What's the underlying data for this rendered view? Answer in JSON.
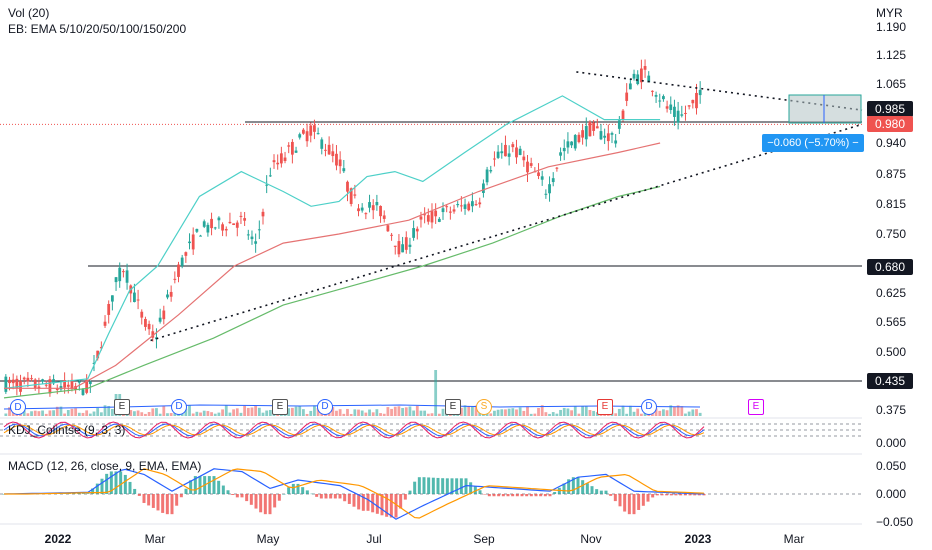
{
  "header": {
    "vol_label": "Vol (20)",
    "ema_label": "EB: EMA 5/10/20/50/100/150/200",
    "currency": "MYR"
  },
  "kdj_label": "KDJ_Colintse (9, 3, 3)",
  "macd_label": "MACD (12, 26, close, 9, EMA, EMA)",
  "badges": {
    "price_0985": "0.985",
    "price_0980": "0.980",
    "price_0680": "0.680",
    "price_0435": "0.435",
    "measure": "−0.060 (−5.70%) −"
  },
  "event_markers": [
    "D",
    "E",
    "D",
    "E",
    "D",
    "E",
    "S",
    "E",
    "D",
    "E"
  ],
  "colors": {
    "up": "#26a69a",
    "down": "#ef5350",
    "ema_fast": "#4dd0c8",
    "ema_mid": "#e57373",
    "ema_slow": "#66bb6a",
    "macd": "#2962ff",
    "signal": "#ff9800",
    "badge_dark": "#131722",
    "badge_red": "#ef5350",
    "badge_blue": "#2196f3"
  },
  "chart_data": {
    "type": "candlestick",
    "symbol_currency": "MYR",
    "x_ticks": [
      "2022",
      "Mar",
      "May",
      "Jul",
      "Sep",
      "Nov",
      "2023",
      "Mar"
    ],
    "main_y_ticks": [
      "1.190",
      "1.125",
      "1.065",
      "0.985",
      "0.940",
      "0.875",
      "0.815",
      "0.750",
      "0.680",
      "0.625",
      "0.565",
      "0.500",
      "0.435",
      "0.375"
    ],
    "kdj_y_ticks": [
      "0.000"
    ],
    "macd_y_ticks": [
      "0.050",
      "0.000",
      "−0.050"
    ],
    "last_price": 0.98,
    "horizontal_levels": [
      0.985,
      0.68,
      0.435
    ],
    "measure_change": "−0.060 (−5.70%)",
    "ema_series": [
      {
        "anchors": [
          [
            0.0,
            0.42
          ],
          [
            0.12,
            0.44
          ],
          [
            0.15,
            0.54
          ],
          [
            0.18,
            0.63
          ],
          [
            0.22,
            0.68
          ],
          [
            0.28,
            0.83
          ],
          [
            0.34,
            0.88
          ],
          [
            0.4,
            0.84
          ],
          [
            0.44,
            0.81
          ],
          [
            0.48,
            0.82
          ],
          [
            0.52,
            0.87
          ],
          [
            0.56,
            0.88
          ],
          [
            0.6,
            0.86
          ],
          [
            0.66,
            0.92
          ],
          [
            0.72,
            0.98
          ],
          [
            0.8,
            1.04
          ],
          [
            0.86,
            0.99
          ],
          [
            0.9,
            0.99
          ],
          [
            0.94,
            0.99
          ]
        ]
      },
      {
        "anchors": [
          [
            0.0,
            0.42
          ],
          [
            0.1,
            0.42
          ],
          [
            0.16,
            0.47
          ],
          [
            0.25,
            0.58
          ],
          [
            0.33,
            0.68
          ],
          [
            0.4,
            0.73
          ],
          [
            0.48,
            0.75
          ],
          [
            0.58,
            0.78
          ],
          [
            0.68,
            0.84
          ],
          [
            0.78,
            0.89
          ],
          [
            0.88,
            0.92
          ],
          [
            0.94,
            0.94
          ]
        ]
      },
      {
        "anchors": [
          [
            0.0,
            0.4
          ],
          [
            0.12,
            0.42
          ],
          [
            0.2,
            0.47
          ],
          [
            0.3,
            0.53
          ],
          [
            0.4,
            0.6
          ],
          [
            0.5,
            0.64
          ],
          [
            0.6,
            0.68
          ],
          [
            0.7,
            0.73
          ],
          [
            0.8,
            0.79
          ],
          [
            0.88,
            0.83
          ],
          [
            0.94,
            0.85
          ]
        ]
      }
    ],
    "trendlines": [
      {
        "from": [
          0.21,
          0.525
        ],
        "to": [
          1.0,
          0.98
        ]
      },
      {
        "from": [
          0.82,
          1.09
        ],
        "to": [
          1.0,
          1.01
        ]
      }
    ]
  }
}
